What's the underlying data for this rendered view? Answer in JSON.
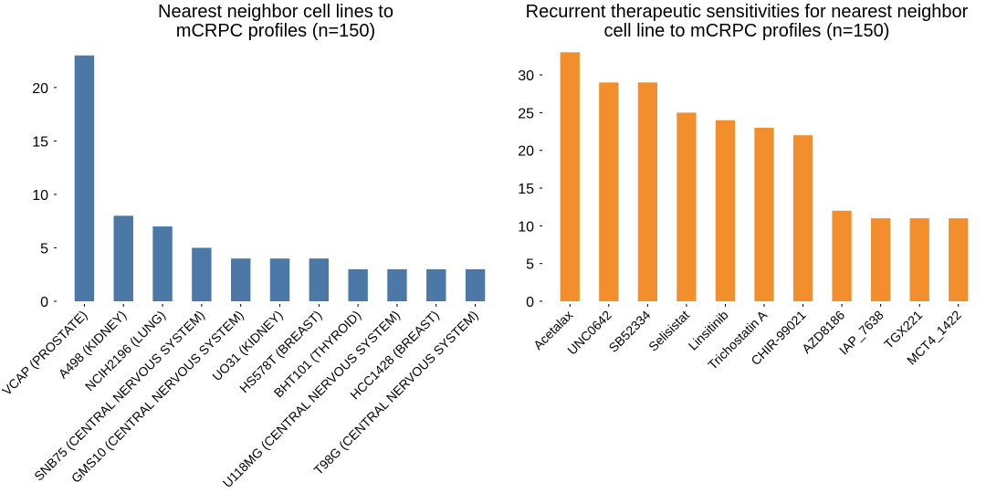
{
  "chart_data": [
    {
      "type": "bar",
      "title_lines": [
        "Nearest neighbor cell lines to",
        "mCRPC profiles (n=150)"
      ],
      "categories": [
        "VCAP (PROSTATE)",
        "A498 (KIDNEY)",
        "NCIH2196 (LUNG)",
        "SNB75 (CENTRAL NERVOUS SYSTEM)",
        "GMS10 (CENTRAL NERVOUS SYSTEM)",
        "UO31 (KIDNEY)",
        "HS578T (BREAST)",
        "BHT101 (THYROID)",
        "U118MG (CENTRAL NERVOUS SYSTEM)",
        "HCC1428 (BREAST)",
        "T98G (CENTRAL NERVOUS SYSTEM)"
      ],
      "values": [
        23,
        8,
        7,
        5,
        4,
        4,
        4,
        3,
        3,
        3,
        3
      ],
      "yticks": [
        0,
        5,
        10,
        15,
        20
      ],
      "ylim": [
        0,
        24
      ],
      "xlabel": "",
      "ylabel": "",
      "color": "#4c78a8",
      "grid": false,
      "legend": "none"
    },
    {
      "type": "bar",
      "title_lines": [
        "Recurrent therapeutic sensitivities for nearest neighbor",
        "cell line to mCRPC profiles (n=150)"
      ],
      "categories": [
        "Acetalax",
        "UNC0642",
        "SB52334",
        "Selisistat",
        "Linsitinib",
        "Trichostatin A",
        "CHIR-99021",
        "AZD8186",
        "IAP_7638",
        "TGX221",
        "MCT4_1422"
      ],
      "values": [
        33,
        29,
        29,
        25,
        24,
        23,
        22,
        12,
        11,
        11,
        11
      ],
      "yticks": [
        0,
        5,
        10,
        15,
        20,
        25,
        30
      ],
      "ylim": [
        0,
        34
      ],
      "xlabel": "",
      "ylabel": "",
      "color": "#f28e2b",
      "grid": false,
      "legend": "none"
    }
  ]
}
